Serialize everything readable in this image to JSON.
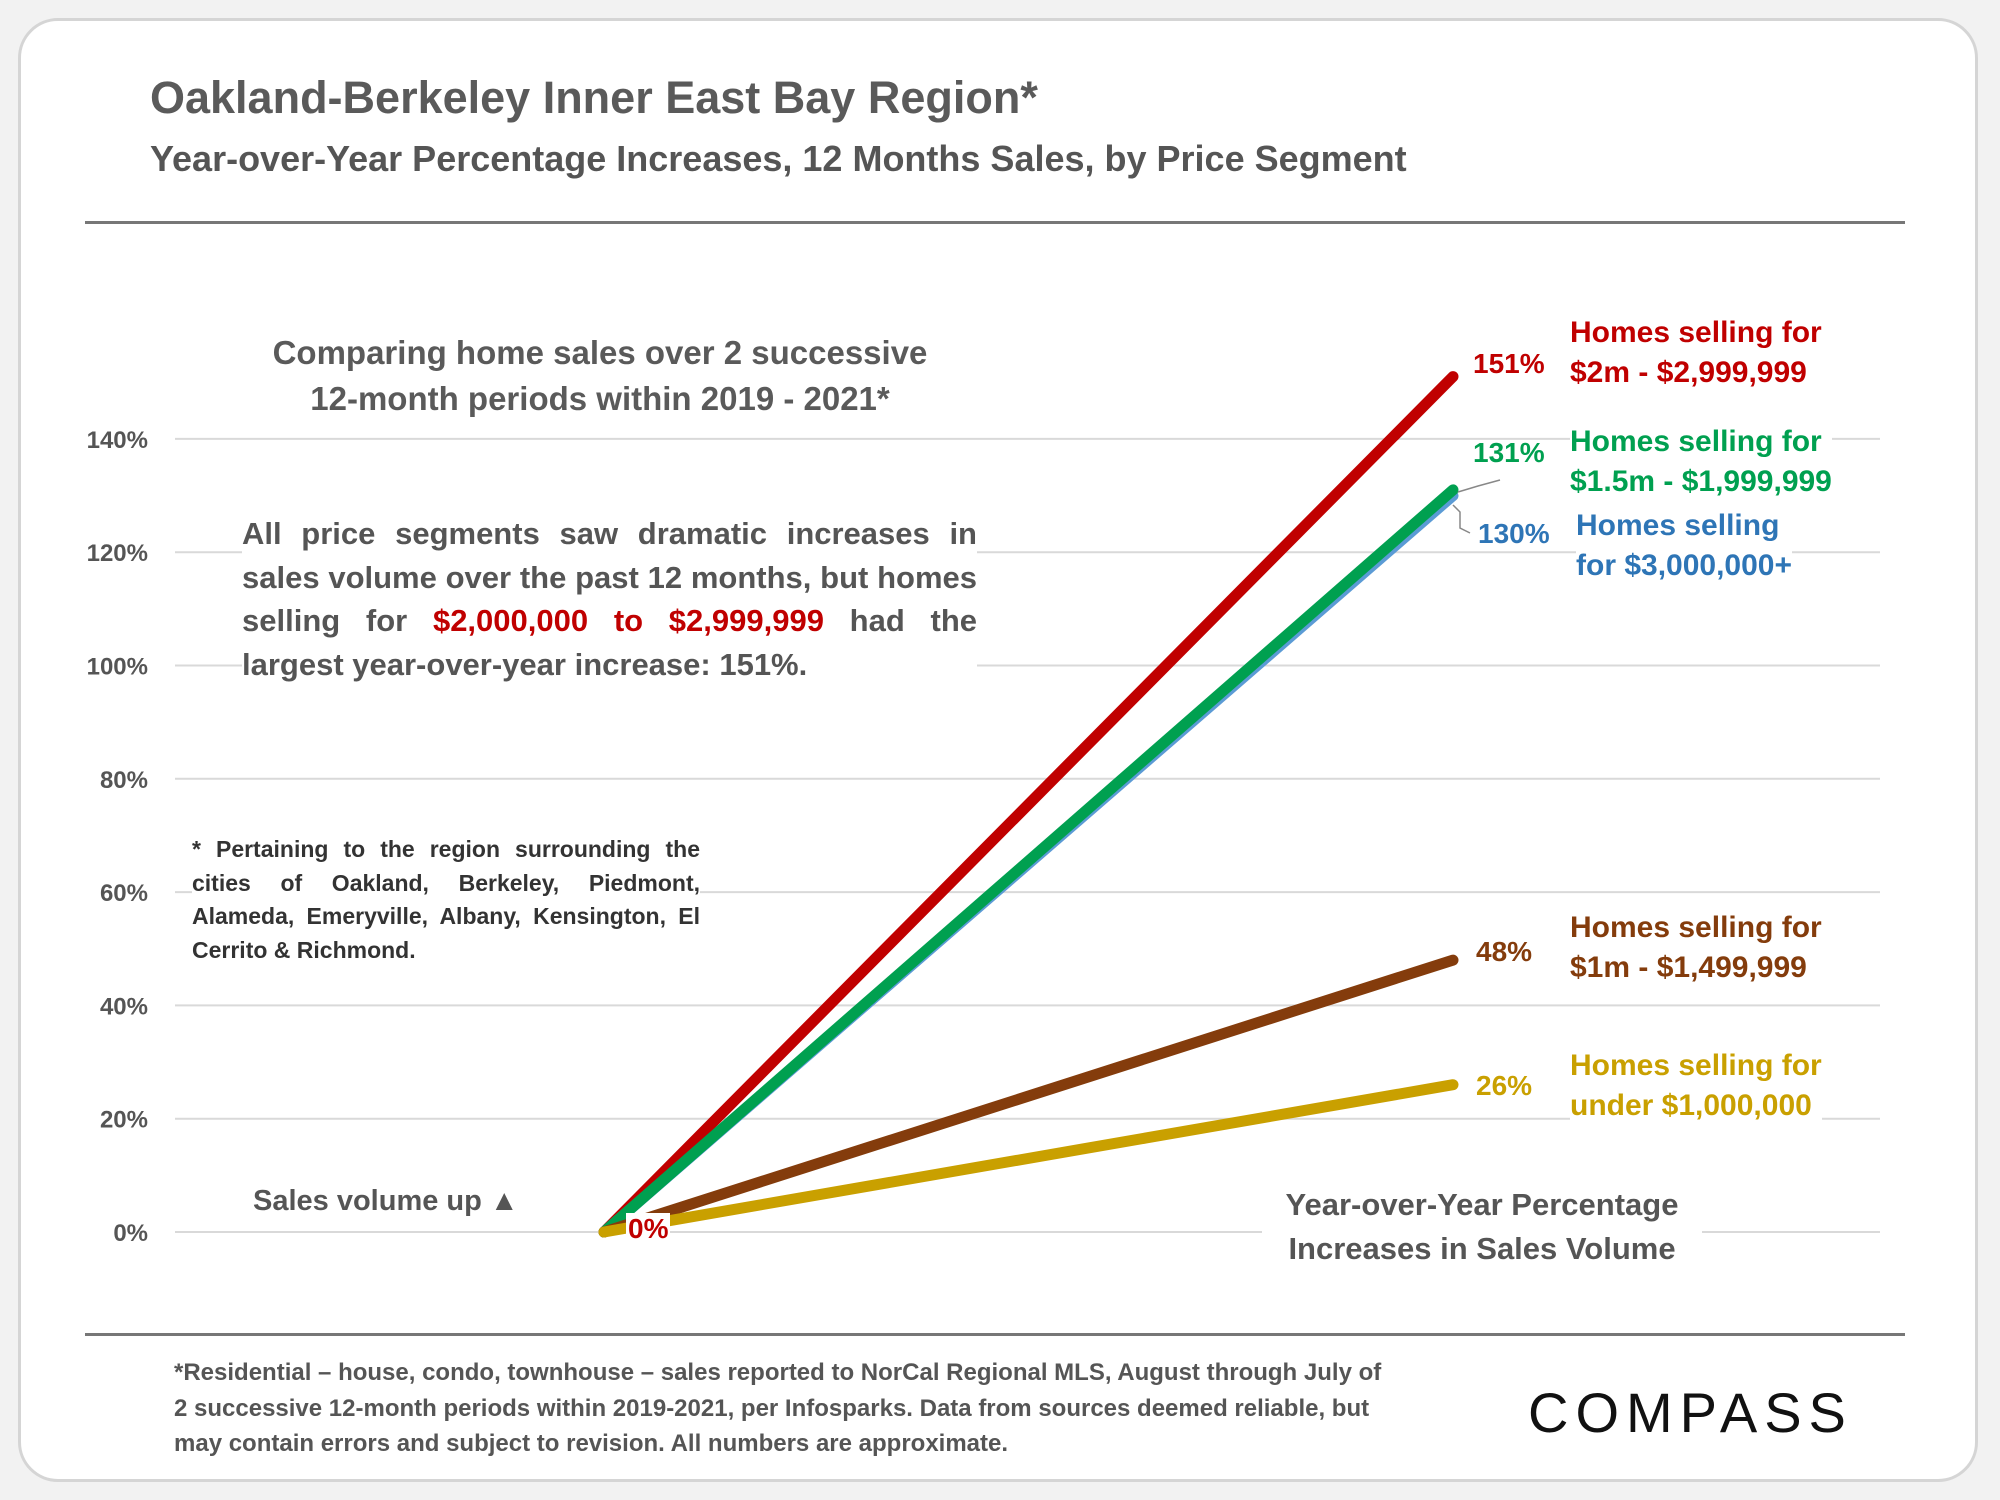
{
  "title": "Oakland-Berkeley Inner East Bay Region*",
  "subtitle": "Year-over-Year Percentage Increases, 12 Months Sales, by Price Segment",
  "note": {
    "heading_line1": "Comparing home sales over 2 successive",
    "heading_line2": "12-month periods within 2019 - 2021*",
    "body_part1": "All price segments saw dramatic increases in sales volume over the past 12 months, but homes selling for ",
    "body_highlight": "$2,000,000 to $2,999,999",
    "body_part2": " had the largest year-over-year increase:  151%.",
    "footnote": "* Pertaining to the region surrounding the cities of Oakland, Berkeley, Piedmont, Alameda, Emeryville, Albany, Kensington, El Cerrito & Richmond."
  },
  "sales_volume_label": "Sales volume up ▲",
  "origin_label": "0%",
  "footer": "*Residential – house, condo, townhouse – sales reported to NorCal Regional MLS, August through July of 2 successive 12-month periods within 2019-2021, per Infosparks. Data from sources deemed reliable, but may contain errors and subject to revision. All numbers  are approximate.",
  "logo_text": "COMPASS",
  "chart_data": {
    "type": "line",
    "x": [
      0,
      1
    ],
    "yticks": [
      "0%",
      "20%",
      "40%",
      "60%",
      "80%",
      "100%",
      "120%",
      "140%"
    ],
    "ylim": [
      0,
      140
    ],
    "xlabel_line1": "Year-over-Year Percentage",
    "xlabel_line2": "Increases in Sales Volume",
    "grid": true,
    "series": [
      {
        "name_line1": "Homes selling for",
        "name_line2": "$2m - $2,999,999",
        "values": [
          0,
          151
        ],
        "value_label": "151%",
        "color": "#c00000"
      },
      {
        "name_line1": "Homes selling",
        "name_line2": "for $3,000,000+",
        "values": [
          0,
          130
        ],
        "value_label": "130%",
        "color": "#5b9bd5"
      },
      {
        "name_line1": "Homes selling for",
        "name_line2": "$1.5m - $1,999,999",
        "values": [
          0,
          131
        ],
        "value_label": "131%",
        "color": "#00a050"
      },
      {
        "name_line1": "Homes selling for",
        "name_line2": "$1m - $1,499,999",
        "values": [
          0,
          48
        ],
        "value_label": "48%",
        "color": "#843c0c"
      },
      {
        "name_line1": "Homes selling for",
        "name_line2": "under $1,000,000",
        "values": [
          0,
          26
        ],
        "value_label": "26%",
        "color": "#c9a000"
      }
    ]
  }
}
